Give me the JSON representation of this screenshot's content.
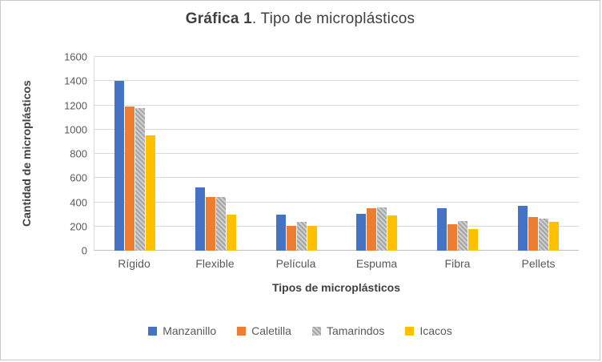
{
  "chart_data": {
    "type": "bar",
    "title": "Gráfica 1. Tipo de microplásticos",
    "title_bold": "Gráfica 1",
    "title_rest": ". Tipo de microplásticos",
    "xlabel": "Tipos de microplásticos",
    "ylabel": "Cantidad de microplásticos",
    "categories": [
      "Rígido",
      "Flexible",
      "Película",
      "Espuma",
      "Fibra",
      "Pellets"
    ],
    "series": [
      {
        "name": "Manzanillo",
        "color": "#4472c4",
        "pattern": false,
        "values": [
          1400,
          520,
          300,
          305,
          350,
          370
        ]
      },
      {
        "name": "Caletilla",
        "color": "#ed7d31",
        "pattern": false,
        "values": [
          1190,
          445,
          205,
          350,
          215,
          275
        ]
      },
      {
        "name": "Tamarindos",
        "color": "#a5a5a5",
        "pattern": true,
        "values": [
          1180,
          440,
          235,
          355,
          245,
          265
        ]
      },
      {
        "name": "Icacos",
        "color": "#ffc000",
        "pattern": false,
        "values": [
          950,
          300,
          205,
          290,
          180,
          240
        ]
      }
    ],
    "ylim": [
      0,
      1600
    ],
    "yticks": [
      0,
      200,
      400,
      600,
      800,
      1000,
      1200,
      1400,
      1600
    ],
    "grid": true,
    "legend_position": "bottom"
  }
}
